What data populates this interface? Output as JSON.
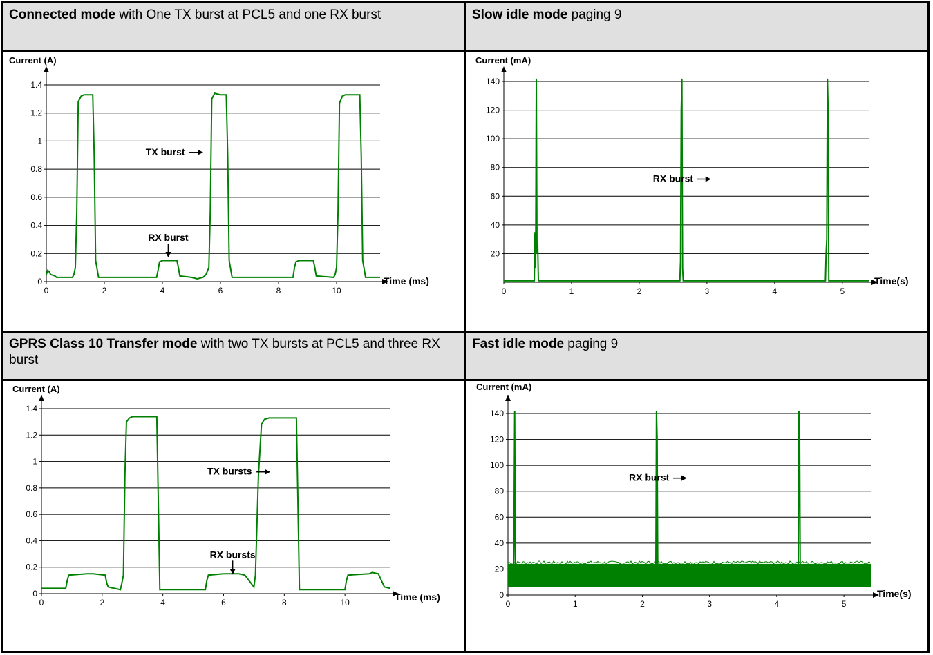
{
  "panels": [
    {
      "id": "connected",
      "title_bold": "Connected mode",
      "title_rest": "  with One TX  burst at PCL5 and one RX burst",
      "chart_data": {
        "type": "line",
        "ylabel": "Current (A)",
        "xlabel": "Time (ms)",
        "xlim": [
          0,
          11.5
        ],
        "ylim": [
          0,
          1.4
        ],
        "x_ticks": [
          "0",
          "2",
          "4",
          "6",
          "8",
          "10"
        ],
        "y_ticks": [
          "0",
          "0.2",
          "0.4",
          "0.6",
          "0.8",
          "1",
          "1.2",
          "1.4"
        ],
        "grid": true,
        "line_color": "#008000",
        "series": [
          {
            "x": [
              0,
              0.05,
              0.1,
              0.15,
              0.3,
              0.35,
              0.9,
              0.95,
              1.0,
              1.05,
              1.1,
              1.2,
              1.3,
              1.6,
              1.65,
              1.7,
              1.8,
              3.8,
              3.85,
              3.9,
              4.0,
              4.5,
              4.55,
              4.6,
              5.0,
              5.2,
              5.4,
              5.5,
              5.6,
              5.65,
              5.7,
              5.8,
              6.0,
              6.2,
              6.25,
              6.3,
              6.4,
              8.5,
              8.55,
              8.6,
              8.7,
              9.2,
              9.25,
              9.3,
              9.9,
              9.95,
              10.0,
              10.05,
              10.1,
              10.2,
              10.3,
              10.8,
              10.85,
              10.9,
              11.0,
              11.5
            ],
            "y": [
              0.05,
              0.08,
              0.07,
              0.05,
              0.04,
              0.03,
              0.03,
              0.05,
              0.1,
              0.5,
              1.28,
              1.32,
              1.33,
              1.33,
              0.9,
              0.15,
              0.03,
              0.03,
              0.08,
              0.14,
              0.15,
              0.15,
              0.1,
              0.04,
              0.03,
              0.02,
              0.03,
              0.05,
              0.1,
              0.5,
              1.3,
              1.34,
              1.33,
              1.33,
              0.9,
              0.15,
              0.03,
              0.03,
              0.1,
              0.14,
              0.15,
              0.15,
              0.1,
              0.04,
              0.03,
              0.05,
              0.1,
              0.5,
              1.27,
              1.32,
              1.33,
              1.33,
              0.9,
              0.15,
              0.03,
              0.03
            ]
          }
        ],
        "annotations": [
          {
            "text": "TX burst",
            "x": 4.1,
            "y": 0.9,
            "arrow": "right"
          },
          {
            "text": "RX burst",
            "x": 4.2,
            "y": 0.29,
            "arrow": "down"
          }
        ]
      }
    },
    {
      "id": "slow-idle",
      "title_bold": "Slow idle mode",
      "title_rest": " paging 9",
      "chart_data": {
        "type": "line",
        "ylabel": "Current (mA)",
        "xlabel": "Time(s)",
        "xlim": [
          0,
          5.4
        ],
        "ylim": [
          0,
          140
        ],
        "x_ticks": [
          "0",
          "1",
          "2",
          "3",
          "4",
          "5"
        ],
        "y_ticks": [
          "20",
          "40",
          "60",
          "80",
          "100",
          "120",
          "140"
        ],
        "grid": true,
        "line_color": "#008000",
        "series": [
          {
            "x": [
              0,
              0.45,
              0.46,
              0.47,
              0.48,
              0.49,
              0.5,
              0.51,
              0.52,
              2.6,
              2.61,
              2.62,
              2.63,
              2.64,
              2.65,
              4.75,
              4.76,
              4.77,
              4.78,
              4.79,
              4.8,
              5.4
            ],
            "y": [
              1,
              1,
              35,
              10,
              142,
              20,
              28,
              2,
              1,
              1,
              15,
              120,
              142,
              10,
              1,
              1,
              20,
              30,
              142,
              120,
              1,
              1
            ]
          }
        ],
        "annotations": [
          {
            "text": "RX burst",
            "x": 2.5,
            "y": 70,
            "arrow": "right"
          }
        ]
      }
    },
    {
      "id": "gprs",
      "title_bold": "GPRS Class 10 Transfer mode",
      "title_rest": " with two TX bursts at PCL5 and three RX burst",
      "chart_data": {
        "type": "line",
        "ylabel": "Current (A)",
        "xlabel": "Time (ms)",
        "xlim": [
          0,
          11.5
        ],
        "ylim": [
          0,
          1.4
        ],
        "x_ticks": [
          "0",
          "2",
          "4",
          "6",
          "8",
          "10"
        ],
        "y_ticks": [
          "0",
          "0.2",
          "0.4",
          "0.6",
          "0.8",
          "1",
          "1.2",
          "1.4"
        ],
        "grid": true,
        "line_color": "#008000",
        "series": [
          {
            "x": [
              0,
              0.8,
              0.85,
              0.9,
              1.5,
              1.6,
              1.7,
              2.1,
              2.15,
              2.2,
              2.6,
              2.65,
              2.7,
              2.75,
              2.8,
              2.9,
              3.0,
              3.5,
              3.8,
              3.85,
              3.9,
              4.0,
              5.4,
              5.45,
              5.5,
              6.0,
              6.5,
              6.7,
              6.9,
              7.0,
              7.05,
              7.15,
              7.25,
              7.35,
              7.5,
              8.4,
              8.45,
              8.5,
              8.6,
              10.0,
              10.05,
              10.1,
              10.8,
              10.9,
              11.1,
              11.2,
              11.3,
              11.5
            ],
            "y": [
              0.04,
              0.04,
              0.1,
              0.14,
              0.15,
              0.15,
              0.15,
              0.14,
              0.08,
              0.05,
              0.03,
              0.08,
              0.14,
              0.9,
              1.3,
              1.33,
              1.34,
              1.34,
              1.34,
              0.7,
              0.03,
              0.03,
              0.03,
              0.1,
              0.14,
              0.15,
              0.15,
              0.14,
              0.08,
              0.05,
              0.14,
              0.9,
              1.28,
              1.32,
              1.33,
              1.33,
              0.7,
              0.03,
              0.03,
              0.03,
              0.1,
              0.14,
              0.15,
              0.16,
              0.15,
              0.1,
              0.05,
              0.04
            ]
          }
        ],
        "annotations": [
          {
            "text": "TX bursts",
            "x": 6.2,
            "y": 0.9,
            "arrow": "right"
          },
          {
            "text": "RX bursts",
            "x": 6.3,
            "y": 0.27,
            "arrow": "down"
          }
        ]
      }
    },
    {
      "id": "fast-idle",
      "title_bold": "Fast idle mode",
      "title_rest": " paging 9",
      "chart_data": {
        "type": "line",
        "ylabel": "Current (mA)",
        "xlabel": "Time(s)",
        "xlim": [
          0,
          5.4
        ],
        "ylim": [
          0,
          140
        ],
        "x_ticks": [
          "0",
          "1",
          "2",
          "3",
          "4",
          "5"
        ],
        "y_ticks": [
          "0",
          "20",
          "40",
          "60",
          "80",
          "100",
          "120",
          "140"
        ],
        "grid": true,
        "line_color": "#008000",
        "noise_band": [
          6,
          24
        ],
        "series": [
          {
            "x": [
              0.08,
              0.09,
              0.1,
              0.11,
              2.2,
              2.21,
              2.22,
              2.23,
              4.32,
              4.33,
              4.34,
              4.35
            ],
            "y": [
              10,
              48,
              142,
              10,
              10,
              142,
              120,
              10,
              10,
              142,
              130,
              10
            ]
          }
        ],
        "annotations": [
          {
            "text": "RX burst",
            "x": 2.1,
            "y": 88,
            "arrow": "right"
          }
        ]
      }
    }
  ]
}
